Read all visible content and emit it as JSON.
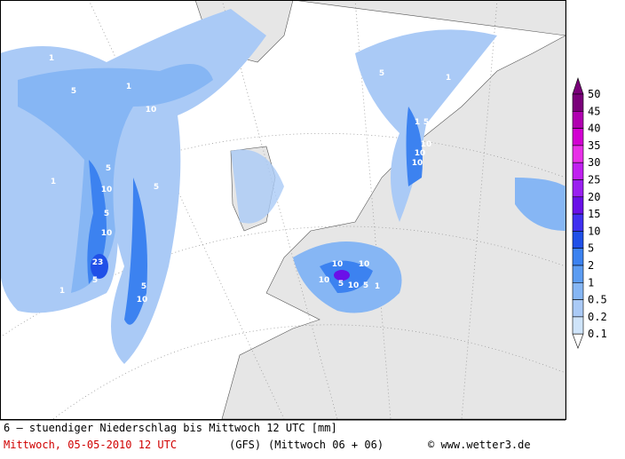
{
  "legend": {
    "levels": [
      {
        "value": 50,
        "color": "#7a007a"
      },
      {
        "value": 45,
        "color": "#b000b0"
      },
      {
        "value": 40,
        "color": "#d200d2"
      },
      {
        "value": 35,
        "color": "#e830e8"
      },
      {
        "value": 30,
        "color": "#c020f0"
      },
      {
        "value": 25,
        "color": "#9a20f0"
      },
      {
        "value": 20,
        "color": "#6a10e8"
      },
      {
        "value": 15,
        "color": "#4030f0"
      },
      {
        "value": 10,
        "color": "#2050e8"
      },
      {
        "value": 5,
        "color": "#3c82f0"
      },
      {
        "value": 2,
        "color": "#5c9cf2"
      },
      {
        "value": 1,
        "color": "#86b6f4"
      },
      {
        "value": 0.5,
        "color": "#aacaf6"
      },
      {
        "value": 0.2,
        "color": "#cfe4fa"
      },
      {
        "value": 0.1,
        "color": "#ffffff"
      }
    ]
  },
  "contour_labels": [
    1,
    5,
    10,
    1,
    5,
    5,
    10,
    5,
    1,
    10,
    10,
    23,
    5,
    1,
    5,
    10,
    1,
    5,
    1,
    5,
    10,
    10,
    10,
    5,
    10,
    10,
    5,
    10,
    1,
    5,
    5,
    1,
    1,
    1
  ],
  "footer": {
    "title": "6 – stuendiger Niederschlag bis Mittwoch 12 UTC [mm]",
    "date": "Mittwoch, 05-05-2010  12 UTC",
    "model": "(GFS)",
    "run": "(Mittwoch 06 + 06)",
    "credit": "© www.wetter3.de"
  }
}
